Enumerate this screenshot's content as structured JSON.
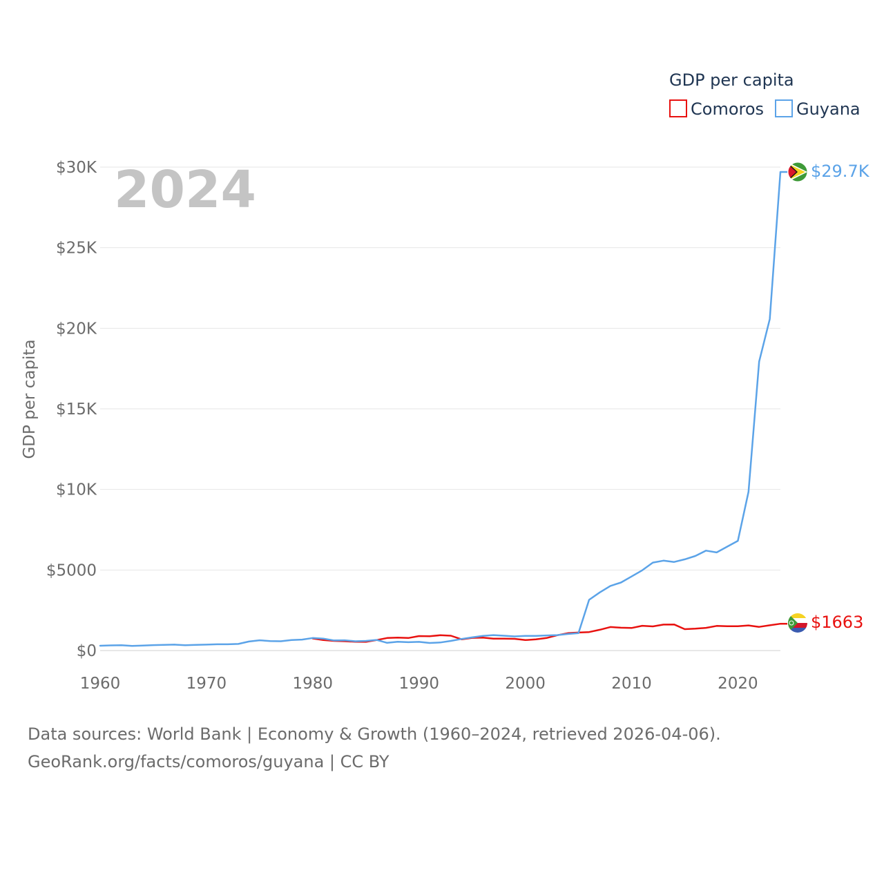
{
  "chart_data": {
    "type": "line",
    "title": "",
    "legend_title": "GDP per capita",
    "year_label": "2024",
    "ylabel": "GDP per capita",
    "xlabel": "",
    "ylim": [
      0,
      30000
    ],
    "xlim": [
      1960,
      2024
    ],
    "y_ticks": [
      {
        "value": 0,
        "label": "$0"
      },
      {
        "value": 5000,
        "label": "$5000"
      },
      {
        "value": 10000,
        "label": "$10K"
      },
      {
        "value": 15000,
        "label": "$15K"
      },
      {
        "value": 20000,
        "label": "$20K"
      },
      {
        "value": 25000,
        "label": "$25K"
      },
      {
        "value": 30000,
        "label": "$30K"
      }
    ],
    "x_ticks": [
      {
        "value": 1960,
        "label": "1960"
      },
      {
        "value": 1970,
        "label": "1970"
      },
      {
        "value": 1980,
        "label": "1980"
      },
      {
        "value": 1990,
        "label": "1990"
      },
      {
        "value": 2000,
        "label": "2000"
      },
      {
        "value": 2010,
        "label": "2010"
      },
      {
        "value": 2020,
        "label": "2020"
      }
    ],
    "grid": true,
    "legend_position": "top-right",
    "series": [
      {
        "name": "Comoros",
        "color": "#e8110f",
        "end_label": "$1663",
        "x": [
          1980,
          1981,
          1982,
          1983,
          1984,
          1985,
          1986,
          1987,
          1988,
          1989,
          1990,
          1991,
          1992,
          1993,
          1994,
          1995,
          1996,
          1997,
          1998,
          1999,
          2000,
          2001,
          2002,
          2003,
          2004,
          2005,
          2006,
          2007,
          2008,
          2009,
          2010,
          2011,
          2012,
          2013,
          2014,
          2015,
          2016,
          2017,
          2018,
          2019,
          2020,
          2021,
          2022,
          2023,
          2024
        ],
        "values": [
          750,
          650,
          600,
          580,
          550,
          540,
          650,
          780,
          800,
          780,
          900,
          890,
          950,
          920,
          700,
          790,
          800,
          740,
          740,
          730,
          650,
          700,
          780,
          950,
          1080,
          1120,
          1150,
          1290,
          1460,
          1420,
          1400,
          1540,
          1500,
          1610,
          1620,
          1330,
          1360,
          1410,
          1530,
          1510,
          1510,
          1560,
          1470,
          1570,
          1663
        ]
      },
      {
        "name": "Guyana",
        "color": "#5ba3e8",
        "end_label": "$29.7K",
        "x": [
          1960,
          1961,
          1962,
          1963,
          1964,
          1965,
          1966,
          1967,
          1968,
          1969,
          1970,
          1971,
          1972,
          1973,
          1974,
          1975,
          1976,
          1977,
          1978,
          1979,
          1980,
          1981,
          1982,
          1983,
          1984,
          1985,
          1986,
          1987,
          1988,
          1989,
          1990,
          1991,
          1992,
          1993,
          1994,
          1995,
          1996,
          1997,
          1998,
          1999,
          2000,
          2001,
          2002,
          2003,
          2004,
          2005,
          2006,
          2007,
          2008,
          2009,
          2010,
          2011,
          2012,
          2013,
          2014,
          2015,
          2016,
          2017,
          2018,
          2019,
          2020,
          2021,
          2022,
          2023,
          2024
        ],
        "values": [
          300,
          320,
          330,
          290,
          310,
          340,
          350,
          370,
          330,
          350,
          370,
          390,
          390,
          410,
          560,
          640,
          590,
          580,
          650,
          680,
          780,
          740,
          630,
          640,
          580,
          600,
          660,
          480,
          550,
          520,
          540,
          470,
          500,
          600,
          720,
          820,
          910,
          960,
          920,
          880,
          910,
          910,
          940,
          960,
          1030,
          1080,
          3150,
          3610,
          4010,
          4220,
          4600,
          4980,
          5460,
          5580,
          5500,
          5660,
          5870,
          6200,
          6090,
          6450,
          6810,
          9850,
          17930,
          20570,
          29700
        ]
      }
    ]
  },
  "source": {
    "line1": "Data sources: World Bank | Economy & Growth (1960–2024, retrieved 2026-04-06).",
    "line2": "GeoRank.org/facts/comoros/guyana | CC BY"
  }
}
